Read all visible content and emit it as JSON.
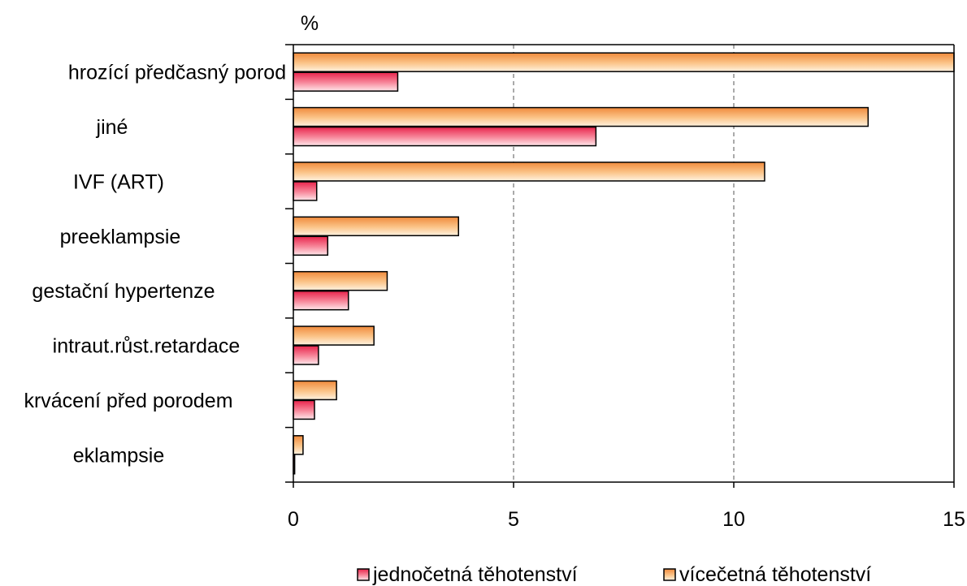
{
  "chart_data": {
    "type": "bar",
    "orientation": "horizontal",
    "unit_label": "%",
    "categories": [
      "hrozící předčasný porod",
      "jiné",
      "IVF (ART)",
      "preeklampsie",
      "gestační hypertenze",
      "intraut.růst.retardace",
      "krvácení před porodem",
      "eklampsie"
    ],
    "series": [
      {
        "name": "vícečetná těhotenství",
        "color": "#f4a45c",
        "values": [
          15.0,
          13.05,
          10.7,
          3.75,
          2.13,
          1.83,
          0.98,
          0.22
        ]
      },
      {
        "name": "jednočetná těhotenství",
        "color": "#ee4466",
        "values": [
          2.37,
          6.87,
          0.53,
          0.78,
          1.25,
          0.57,
          0.48,
          0.03
        ]
      }
    ],
    "xlim": [
      0,
      15
    ],
    "xticks": [
      "0",
      "5",
      "10",
      "15"
    ],
    "grid": "vertical dashed",
    "legend_position": "bottom"
  }
}
